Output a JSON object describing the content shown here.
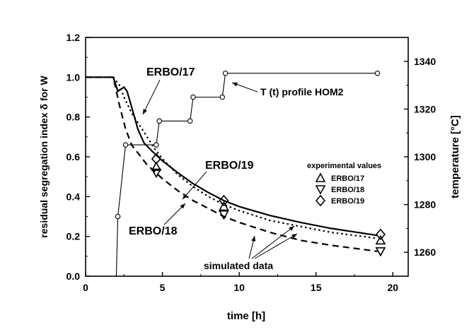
{
  "chart_data": {
    "type": "line",
    "xlabel": "time [h]",
    "ylabel_left": "residual segregation index δ for W",
    "ylabel_right": "temperature [°C]",
    "xlim": [
      0,
      21
    ],
    "ylim": [
      0,
      1.2
    ],
    "y2lim": [
      1250,
      1350
    ],
    "x_ticks": [
      0,
      5,
      10,
      15,
      20
    ],
    "y_ticks": [
      0.0,
      0.2,
      0.4,
      0.6,
      0.8,
      1.0,
      1.2
    ],
    "y2_ticks": [
      1260,
      1280,
      1300,
      1320,
      1340
    ],
    "grid": false,
    "series": [
      {
        "name": "ERBO/17",
        "style": "dotted",
        "points": [
          [
            0,
            1.0
          ],
          [
            1.8,
            1.0
          ],
          [
            2.2,
            0.96
          ],
          [
            2.5,
            0.9
          ],
          [
            3,
            0.82
          ],
          [
            3.5,
            0.76
          ],
          [
            4,
            0.7
          ],
          [
            4.5,
            0.64
          ],
          [
            5,
            0.59
          ],
          [
            6,
            0.51
          ],
          [
            7,
            0.45
          ],
          [
            8,
            0.4
          ],
          [
            9,
            0.36
          ],
          [
            10,
            0.33
          ],
          [
            12,
            0.28
          ],
          [
            14,
            0.25
          ],
          [
            16,
            0.22
          ],
          [
            19,
            0.19
          ]
        ]
      },
      {
        "name": "ERBO/18",
        "style": "dashed",
        "points": [
          [
            0,
            1.0
          ],
          [
            1.8,
            1.0
          ],
          [
            2.2,
            0.86
          ],
          [
            2.6,
            0.74
          ],
          [
            3,
            0.66
          ],
          [
            3.5,
            0.61
          ],
          [
            4,
            0.56
          ],
          [
            5,
            0.49
          ],
          [
            6,
            0.43
          ],
          [
            7,
            0.38
          ],
          [
            8,
            0.34
          ],
          [
            9,
            0.3
          ],
          [
            10,
            0.27
          ],
          [
            12,
            0.22
          ],
          [
            14,
            0.18
          ],
          [
            16,
            0.155
          ],
          [
            19,
            0.125
          ]
        ]
      },
      {
        "name": "ERBO/19",
        "style": "solid",
        "points": [
          [
            0,
            1.0
          ],
          [
            1.8,
            1.0
          ],
          [
            2.1,
            0.93
          ],
          [
            2.3,
            0.94
          ],
          [
            2.5,
            0.95
          ],
          [
            2.7,
            0.93
          ],
          [
            3,
            0.85
          ],
          [
            3.4,
            0.74
          ],
          [
            3.8,
            0.67
          ],
          [
            4.3,
            0.63
          ],
          [
            5,
            0.58
          ],
          [
            6,
            0.52
          ],
          [
            7,
            0.465
          ],
          [
            8,
            0.42
          ],
          [
            9,
            0.38
          ],
          [
            10,
            0.35
          ],
          [
            12,
            0.305
          ],
          [
            14,
            0.27
          ],
          [
            16,
            0.24
          ],
          [
            19,
            0.205
          ]
        ]
      }
    ],
    "temperature_profile": {
      "name": "T (t) profile HOM2",
      "points": [
        [
          2,
          1250
        ],
        [
          2.1,
          1275
        ],
        [
          2.6,
          1305
        ],
        [
          4.6,
          1305
        ],
        [
          4.8,
          1315
        ],
        [
          6.8,
          1315
        ],
        [
          7,
          1325
        ],
        [
          8.9,
          1325
        ],
        [
          9.1,
          1335
        ],
        [
          19,
          1335
        ]
      ],
      "markers": [
        [
          2.1,
          1275
        ],
        [
          2.6,
          1305
        ],
        [
          4.6,
          1305
        ],
        [
          4.8,
          1315
        ],
        [
          6.8,
          1315
        ],
        [
          7,
          1325
        ],
        [
          8.9,
          1325
        ],
        [
          9.1,
          1335
        ],
        [
          19,
          1335
        ]
      ]
    },
    "experimental": {
      "title": "experimental values",
      "items": [
        {
          "name": "ERBO/17",
          "symbol": "triangle-up"
        },
        {
          "name": "ERBO/18",
          "symbol": "triangle-down"
        },
        {
          "name": "ERBO/19",
          "symbol": "diamond"
        }
      ],
      "points": {
        "ERBO/17": [
          [
            4.6,
            0.55
          ],
          [
            9.0,
            0.35
          ],
          [
            19.2,
            0.18
          ]
        ],
        "ERBO/18": [
          [
            4.6,
            0.52
          ],
          [
            9.0,
            0.31
          ],
          [
            19.2,
            0.125
          ]
        ],
        "ERBO/19": [
          [
            4.6,
            0.59
          ],
          [
            9.0,
            0.38
          ],
          [
            19.2,
            0.21
          ]
        ]
      }
    },
    "annotations": {
      "label_17": "ERBO/17",
      "label_18": "ERBO/18",
      "label_19": "ERBO/19",
      "temp_label": "T (t) profile HOM2",
      "sim_label": "simulated data"
    }
  }
}
